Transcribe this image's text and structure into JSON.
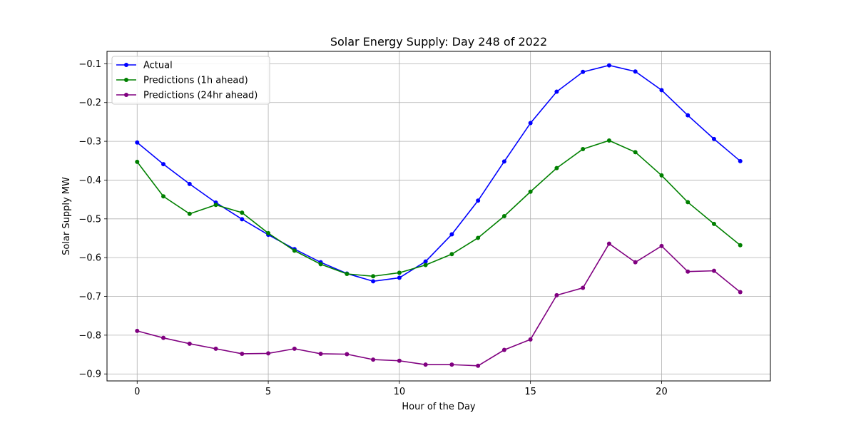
{
  "chart_data": {
    "type": "line",
    "title": "Solar Energy Supply: Day 248 of 2022",
    "xlabel": "Hour of the Day",
    "ylabel": "Solar Supply MW",
    "xlim": [
      -1.15,
      24.15
    ],
    "ylim": [
      -0.918,
      -0.068
    ],
    "xticks": [
      0,
      5,
      10,
      15,
      20
    ],
    "yticks": [
      -0.9,
      -0.8,
      -0.7,
      -0.6,
      -0.5,
      -0.4,
      -0.3,
      -0.2,
      -0.1
    ],
    "ytick_labels": [
      "−0.9",
      "−0.8",
      "−0.7",
      "−0.6",
      "−0.5",
      "−0.4",
      "−0.3",
      "−0.2",
      "−0.1"
    ],
    "grid": true,
    "legend_position": "upper-left",
    "x": [
      0,
      1,
      2,
      3,
      4,
      5,
      6,
      7,
      8,
      9,
      10,
      11,
      12,
      13,
      14,
      15,
      16,
      17,
      18,
      19,
      20,
      21,
      22,
      23
    ],
    "series": [
      {
        "name": "Actual",
        "color": "#0000ff",
        "values": [
          -0.303,
          -0.359,
          -0.41,
          -0.458,
          -0.501,
          -0.541,
          -0.578,
          -0.612,
          -0.641,
          -0.661,
          -0.652,
          -0.61,
          -0.54,
          -0.453,
          -0.352,
          -0.253,
          -0.172,
          -0.121,
          -0.104,
          -0.12,
          -0.168,
          -0.233,
          -0.294,
          -0.351
        ]
      },
      {
        "name": "Predictions (1h ahead)",
        "color": "#008000",
        "values": [
          -0.353,
          -0.442,
          -0.487,
          -0.464,
          -0.484,
          -0.537,
          -0.582,
          -0.617,
          -0.642,
          -0.648,
          -0.639,
          -0.619,
          -0.591,
          -0.549,
          -0.493,
          -0.43,
          -0.369,
          -0.32,
          -0.298,
          -0.328,
          -0.388,
          -0.457,
          -0.513,
          -0.568
        ]
      },
      {
        "name": "Predictions (24hr ahead)",
        "color": "#800080",
        "values": [
          -0.789,
          -0.807,
          -0.822,
          -0.835,
          -0.848,
          -0.847,
          -0.835,
          -0.848,
          -0.849,
          -0.863,
          -0.866,
          -0.876,
          -0.876,
          -0.879,
          -0.838,
          -0.811,
          -0.697,
          -0.678,
          -0.564,
          -0.612,
          -0.57,
          -0.636,
          -0.634,
          -0.689
        ]
      }
    ]
  }
}
